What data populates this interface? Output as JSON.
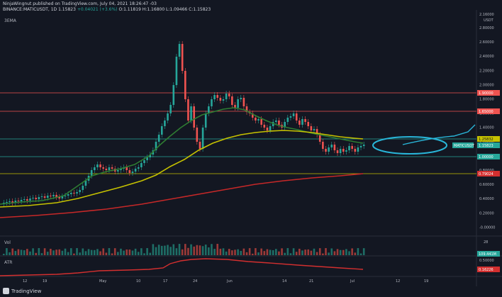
{
  "header": {
    "line1": "NinjaWingnut published on TradingView.com, July 04, 2021 18:26:47 -03",
    "symbol": "BINANCE:MATICUSDT, 1D",
    "close": "1.15823",
    "change": "+0.04021 (+3.6%)",
    "ohlc": "O:1.11819 H:1.16800 L:1.09466 C:1.15823"
  },
  "indicators": {
    "ema_label": "3EMA",
    "vol_label": "Vol",
    "atr_label": "ATR"
  },
  "price_axis": {
    "currency": "USDT",
    "ticks": [
      "2.80000",
      "2.60000",
      "2.40000",
      "2.20000",
      "2.00000",
      "1.80000",
      "1.60000",
      "1.40000",
      "1.20000",
      "1.00000",
      "0.80000",
      "0.60000",
      "0.40000",
      "0.20000",
      "-0.00000"
    ],
    "tag_top": "2.16000",
    "tag_resistance1": "1.90000",
    "tag_resistance2": "1.65000",
    "tag_ema": "1.25832",
    "tag_symbol": "MATICUSDT",
    "tag_price": "1.15823",
    "tag_support": "1.00000",
    "tag_ema_long": "0.79024"
  },
  "vol_axis": {
    "tick": "28",
    "tag": "109.441M"
  },
  "atr_axis": {
    "tag1": "0.50000",
    "tag2": "0.16226"
  },
  "time_axis": {
    "labels": [
      "12",
      "19",
      "May",
      "10",
      "17",
      "24",
      "Jun",
      "14",
      "21",
      "Jul",
      "12",
      "19"
    ]
  },
  "colors": {
    "background": "#131722",
    "up": "#26a69a",
    "down": "#ef5350",
    "ema_short": "#2e7d32",
    "ema_mid": "#c6c200",
    "ema_long": "#c62828",
    "annotation": "#29b6d9"
  },
  "footer": {
    "brand": "TradingView"
  }
}
